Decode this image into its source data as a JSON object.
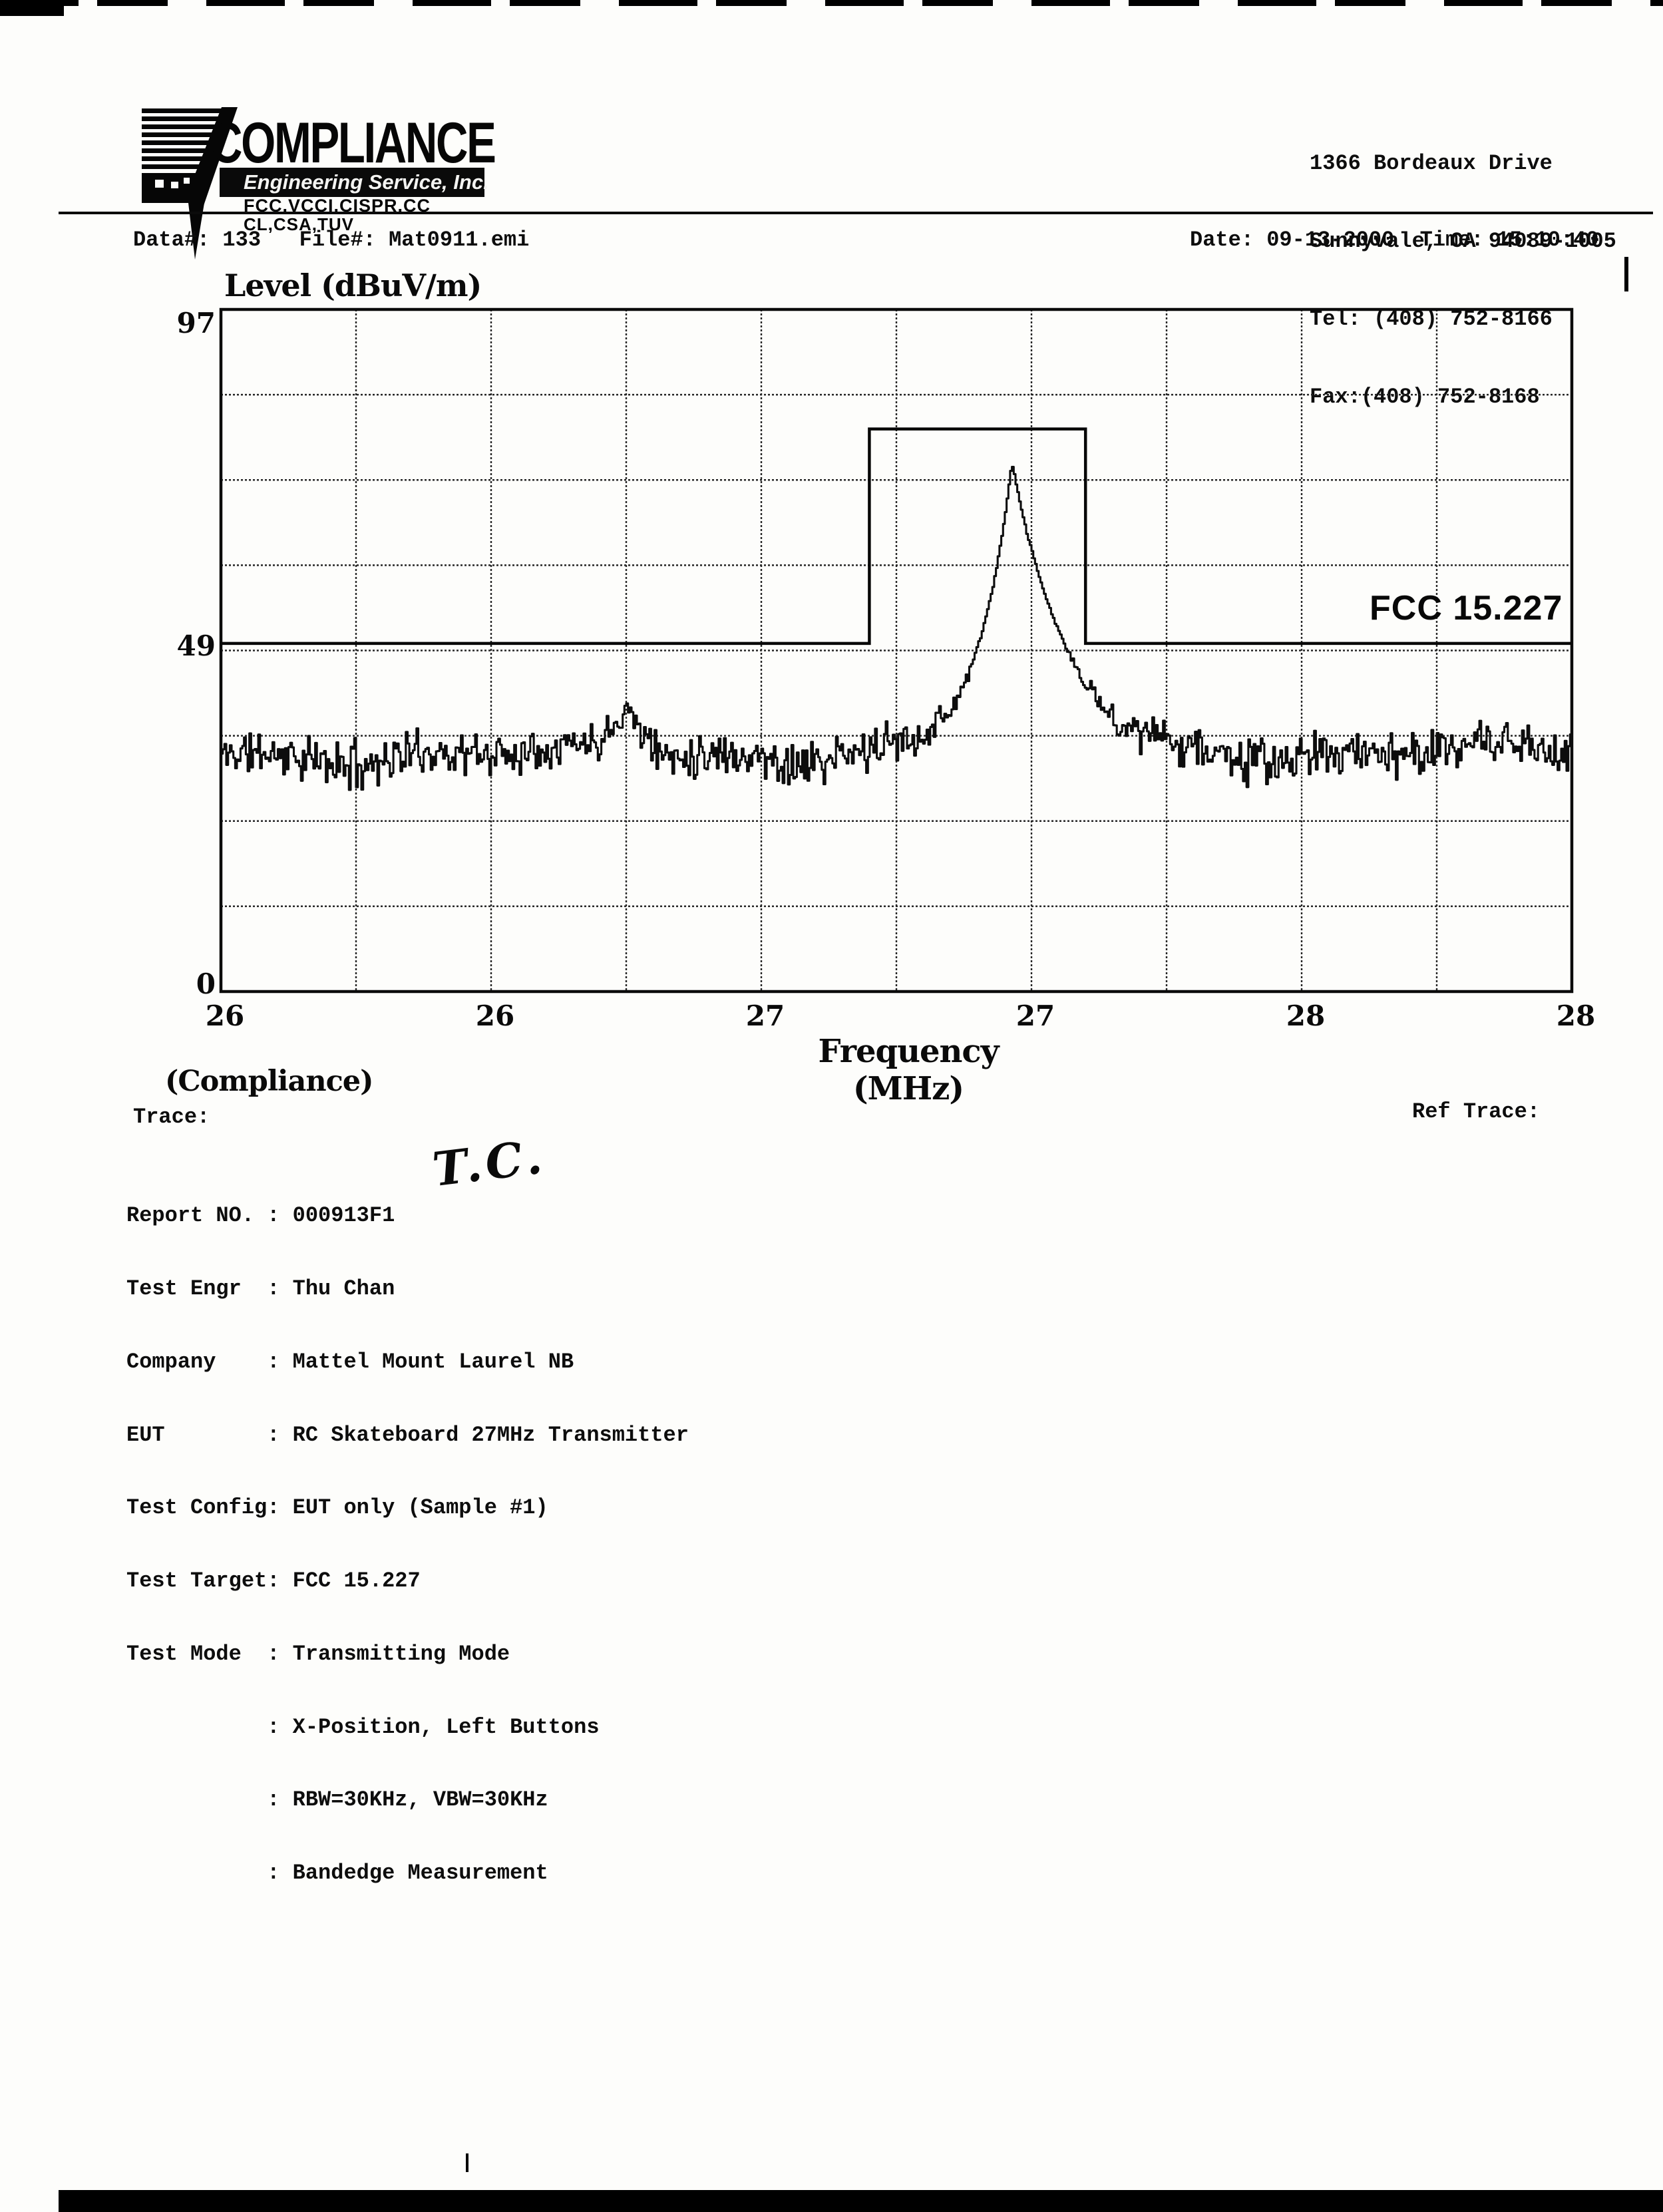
{
  "colors": {
    "ink": "#0d0d0d",
    "paper": "#fdfdfb"
  },
  "header": {
    "logo": {
      "name": "COMPLIANCE",
      "subtitle": "Engineering Service, Inc.",
      "certifications_line1": "FCC.VCCI.CISPR.CC",
      "certifications_line2": "CL,CSA,TUV"
    },
    "address_lines": [
      "1366 Bordeaux Drive",
      "Sunnyvale, CA 94089-1005",
      "Tel: (408) 752-8166",
      "Fax:(408) 752-8168"
    ]
  },
  "info_bar": {
    "left": "Data#: 133   File#: Mat0911.emi",
    "right": "Date: 09-13-2000  Time: 15:10:40"
  },
  "chart_data": {
    "type": "line",
    "title": "",
    "ylabel": "Level (dBuV/m)",
    "xlabel": "Frequency (MHz)",
    "x_range": [
      26,
      28
    ],
    "y_range": [
      0,
      97
    ],
    "y_tick_values": [
      97,
      49,
      0
    ],
    "y_tick_labels": [
      "97",
      "49",
      "0"
    ],
    "x_tick_values": [
      26,
      26.4,
      26.8,
      27.2,
      27.6,
      28
    ],
    "x_tick_labels": [
      "26",
      "26",
      "27",
      "27",
      "28",
      "28"
    ],
    "x_grid_step_mhz": 0.2,
    "y_grid_divisions": 8,
    "grid": true,
    "legend": "none",
    "limit": {
      "label": "FCC 15.227",
      "base_dbuv": 49.5,
      "band_start_mhz": 26.96,
      "band_end_mhz": 27.28,
      "band_limit_dbuv": 80
    },
    "trace": {
      "description": "EMI bandedge sweep trace",
      "noise_floor_dbuv": 34.5,
      "noise_peak_to_peak_db": 7,
      "peak_mhz": 27.17,
      "peak_dbuv": 74,
      "skirt_width_left_mhz": 0.05,
      "skirt_width_right_mhz": 0.075,
      "bump_mhz": 26.6,
      "bump_dbuv": 40,
      "samples": 760,
      "seed": 11
    }
  },
  "footer": {
    "compliance_caption": "(Compliance)",
    "trace_label": "Trace:",
    "ref_trace_label": "Ref Trace:",
    "handwritten_initials": "T.C.",
    "report_lines": [
      "Report NO. : 000913F1",
      "Test Engr  : Thu Chan",
      "Company    : Mattel Mount Laurel NB",
      "EUT        : RC Skateboard 27MHz Transmitter",
      "Test Config: EUT only (Sample #1)",
      "Test Target: FCC 15.227",
      "Test Mode  : Transmitting Mode",
      "           : X-Position, Left Buttons",
      "           : RBW=30KHz, VBW=30KHz",
      "           : Bandedge Measurement"
    ]
  }
}
